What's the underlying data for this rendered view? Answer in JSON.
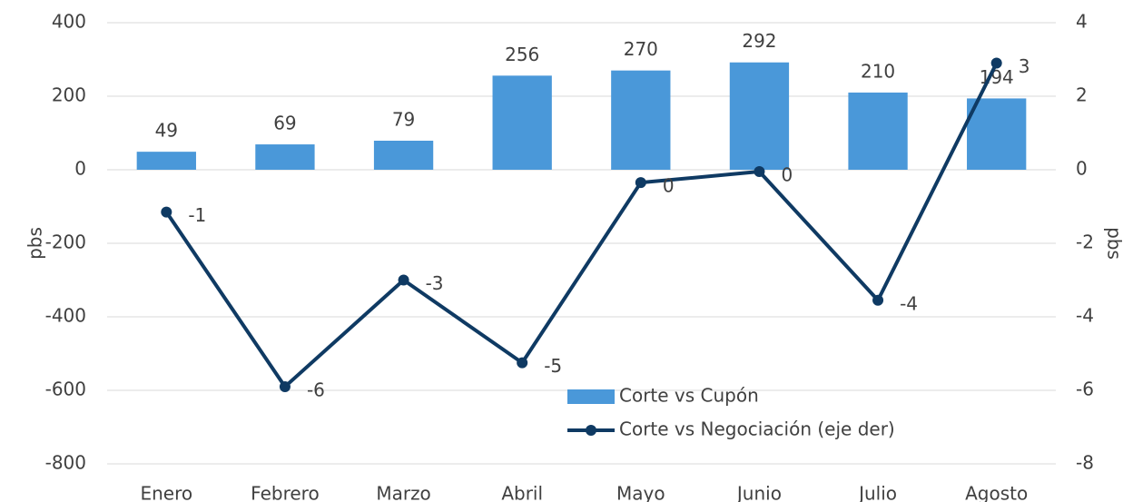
{
  "chart_data": {
    "type": "bar",
    "categories": [
      "Enero",
      "Febrero",
      "Marzo",
      "Abril",
      "Mayo",
      "Junio",
      "Julio",
      "Agosto"
    ],
    "series": [
      {
        "name": "Corte vs Cupón",
        "type": "bar",
        "color": "#4a98d9",
        "values": [
          49,
          69,
          79,
          256,
          270,
          292,
          210,
          194
        ]
      },
      {
        "name": "Corte vs Negociación (eje der)",
        "type": "line",
        "axis": "y2",
        "color": "#0f3a63",
        "values": [
          -1.15,
          -5.9,
          -3.0,
          -5.25,
          -0.35,
          -0.05,
          -3.55,
          2.9
        ],
        "value_labels": [
          "-1",
          "-6",
          "-3",
          "-5",
          "0",
          "0",
          "-4",
          "3"
        ]
      }
    ],
    "ylabel": "pbs",
    "y2label": "pbs",
    "ylim": [
      -800,
      400
    ],
    "yticks": [
      -800,
      -600,
      -400,
      -200,
      0,
      200,
      400
    ],
    "y2lim": [
      -8,
      4
    ],
    "y2ticks": [
      -8,
      -6,
      -4,
      -2,
      0,
      2,
      4
    ],
    "grid": true,
    "legend": "bottom"
  }
}
